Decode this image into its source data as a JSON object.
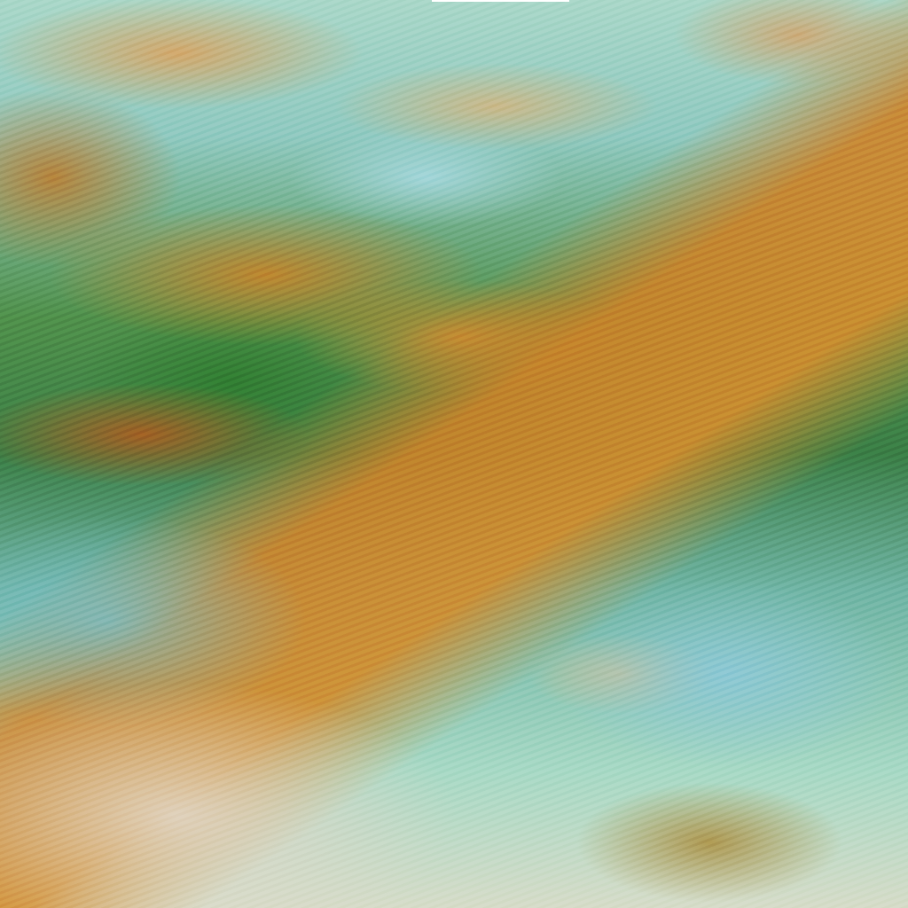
{
  "image": {
    "kind": "false-color satellite imagery",
    "colors": {
      "cloud_orange": "#cf8a30",
      "vegetation_green": "#3a7d45",
      "ice_cyan": "#8fc9c0",
      "haze_pale": "#d6dcc8"
    }
  }
}
